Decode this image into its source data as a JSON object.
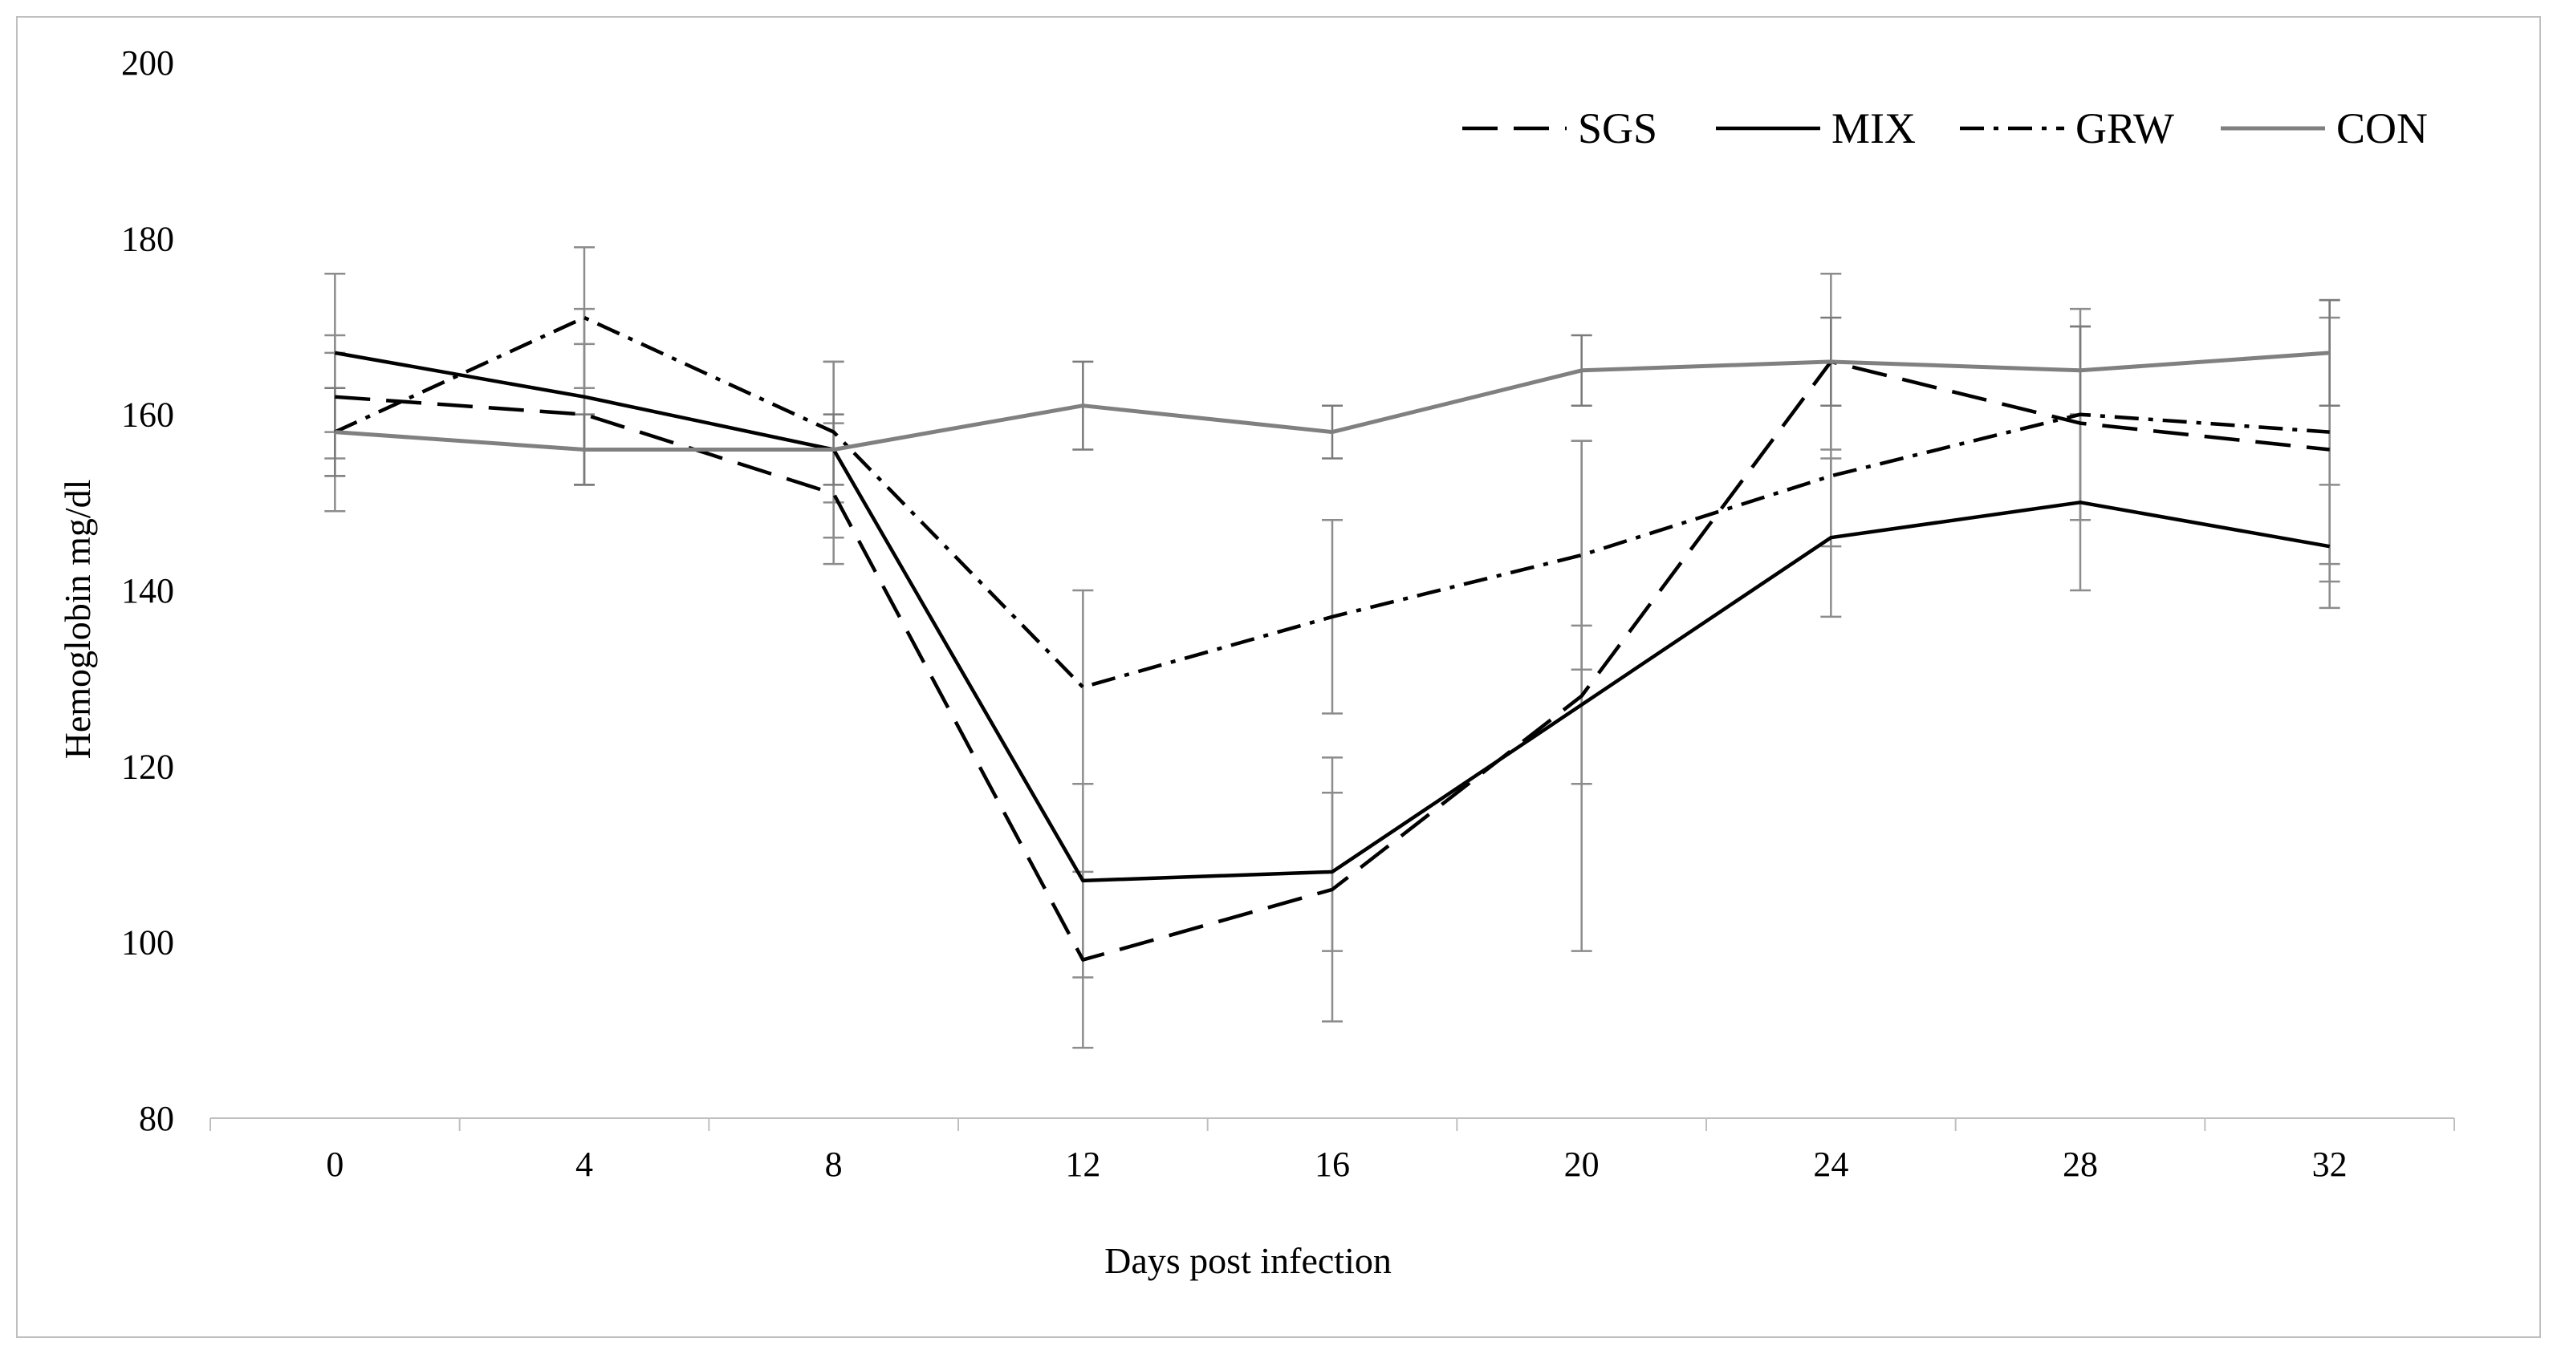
{
  "chart_data": {
    "type": "line",
    "title": "",
    "xlabel": "Days post infection",
    "ylabel": "Hemoglobin mg/dl",
    "categories": [
      "0",
      "4",
      "8",
      "12",
      "16",
      "20",
      "24",
      "28",
      "32"
    ],
    "ylim": [
      80,
      200
    ],
    "yticks": [
      "80",
      "100",
      "120",
      "140",
      "160",
      "180",
      "200"
    ],
    "grid": false,
    "legend_position": "top-right",
    "series": [
      {
        "name": "SGS",
        "style": "dashed",
        "color": "#000000",
        "values": [
          162,
          160,
          151,
          98,
          106,
          128,
          166,
          159,
          156
        ],
        "errors": [
          7,
          8,
          8,
          10,
          15,
          29,
          10,
          11,
          15
        ]
      },
      {
        "name": "MIX",
        "style": "solid",
        "color": "#000000",
        "values": [
          167,
          162,
          156,
          107,
          108,
          127,
          146,
          150,
          145
        ],
        "errors": [
          9,
          10,
          10,
          11,
          9,
          9,
          9,
          10,
          7
        ]
      },
      {
        "name": "GRW",
        "style": "dash-dot",
        "color": "#000000",
        "values": [
          158,
          171,
          158,
          129,
          137,
          144,
          153,
          160,
          158
        ],
        "errors": [
          9,
          8,
          8,
          11,
          11,
          13,
          8,
          12,
          15
        ]
      },
      {
        "name": "CON",
        "style": "solid",
        "color": "#808080",
        "values": [
          158,
          156,
          156,
          161,
          158,
          165,
          166,
          165,
          167
        ],
        "errors": [
          5,
          4,
          4,
          5,
          3,
          4,
          5,
          5,
          6
        ]
      }
    ]
  }
}
